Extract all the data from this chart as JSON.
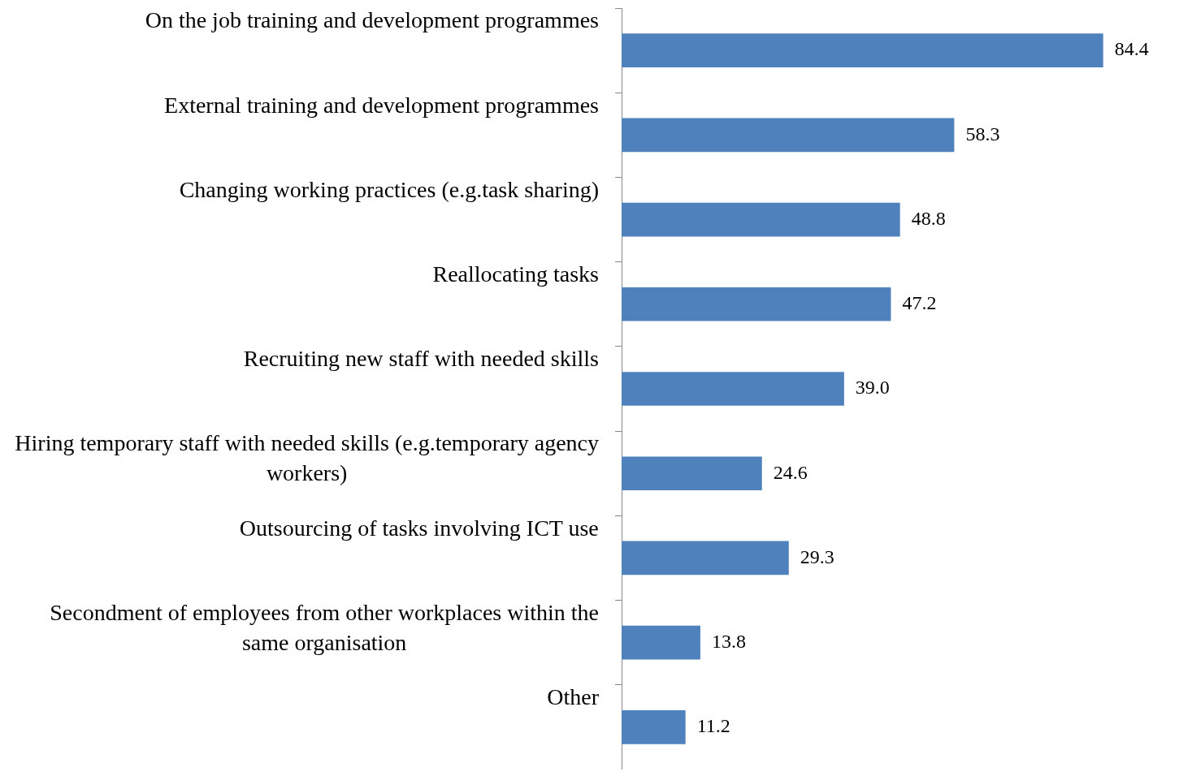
{
  "chart_data": {
    "type": "bar",
    "orientation": "horizontal",
    "categories": [
      "On the job training and development programmes",
      "External training and development programmes",
      "Changing working practices (e.g.task sharing)",
      "Reallocating tasks",
      "Recruiting new staff with needed skills",
      "Hiring temporary staff with needed skills (e.g.temporary agency workers)",
      "Outsourcing of tasks involving ICT use",
      "Secondment of employees from other workplaces within the same organisation",
      "Other"
    ],
    "values": [
      84.4,
      58.3,
      48.8,
      47.2,
      39.0,
      24.6,
      29.3,
      13.8,
      11.2
    ],
    "value_labels": [
      "84.4",
      "58.3",
      "48.8",
      "47.2",
      "39.0",
      "24.6",
      "29.3",
      "13.8",
      "11.2"
    ],
    "color": "#4f81bd"
  }
}
